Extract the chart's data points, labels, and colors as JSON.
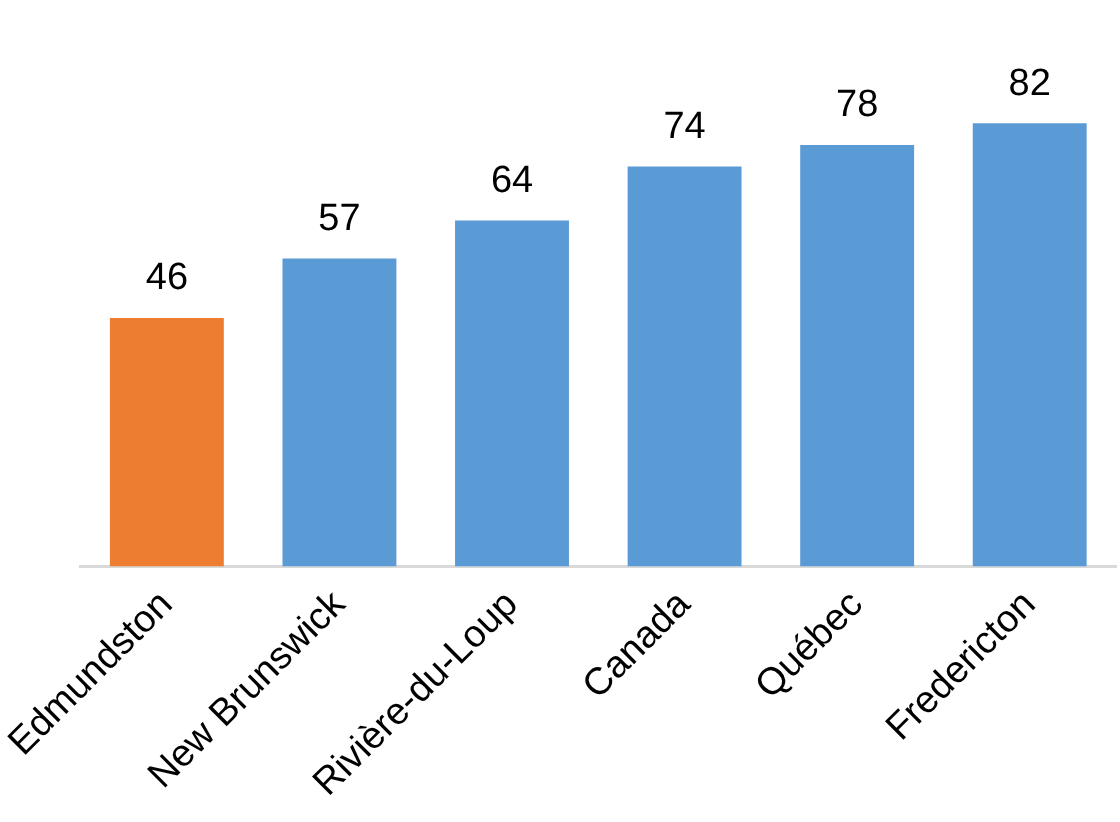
{
  "chart_data": {
    "type": "bar",
    "categories": [
      "Edmundston",
      "New Brunswick",
      "Rivière-du-Loup",
      "Canada",
      "Québec",
      "Fredericton"
    ],
    "values": [
      46,
      57,
      64,
      74,
      78,
      82
    ],
    "colors": [
      "#ed7d31",
      "#5b9bd5",
      "#5b9bd5",
      "#5b9bd5",
      "#5b9bd5",
      "#5b9bd5"
    ],
    "data_labels": true,
    "grid": false,
    "legend": false
  }
}
